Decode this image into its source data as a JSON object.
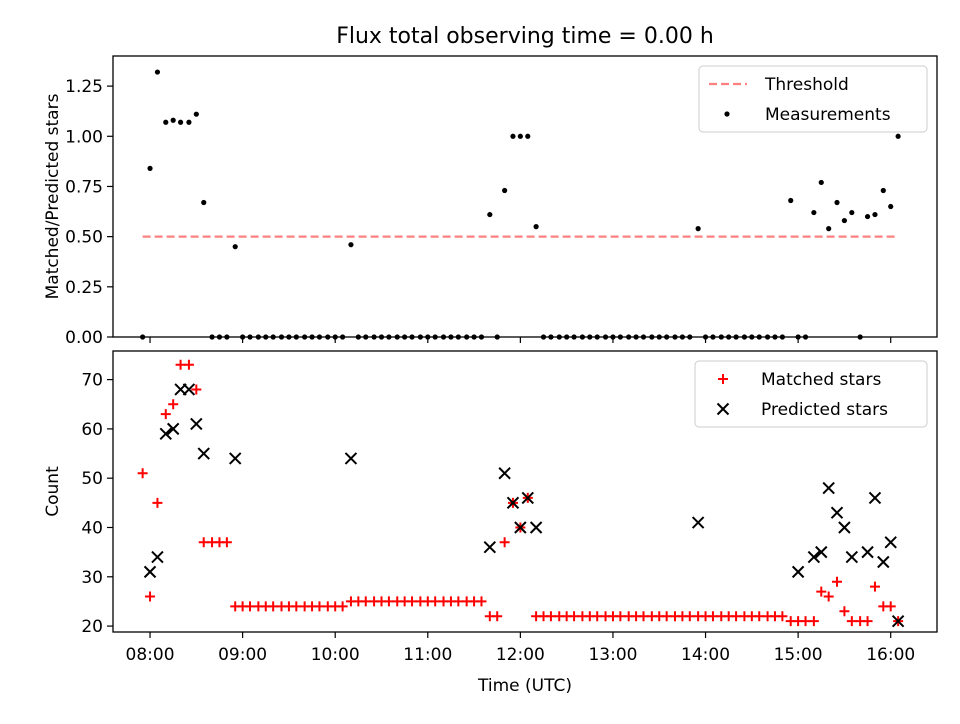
{
  "title": "Flux total observing time = 0.00 h",
  "chart_data": [
    {
      "type": "scatter",
      "ylabel": "Matched/Predicted stars",
      "xlabel": "",
      "xlim": [
        7.6,
        16.5
      ],
      "ylim": [
        0,
        1.4
      ],
      "yticks": [
        0,
        0.25,
        0.5,
        0.75,
        1.0,
        1.25
      ],
      "ytick_labels": [
        "0.00",
        "0.25",
        "0.50",
        "0.75",
        "1.00",
        "1.25"
      ],
      "legend": {
        "position": "top-right",
        "entries": [
          "Threshold",
          "Measurements"
        ]
      },
      "threshold": {
        "name": "Threshold",
        "y": 0.5,
        "x_range": [
          7.92,
          16.08
        ],
        "color": "#ff8080"
      },
      "series": [
        {
          "name": "Measurements",
          "color": "#000000",
          "x": [
            7.92,
            8.0,
            8.08,
            8.17,
            8.25,
            8.33,
            8.42,
            8.5,
            8.58,
            8.67,
            8.75,
            8.83,
            8.92,
            9.0,
            9.08,
            9.17,
            9.25,
            9.33,
            9.42,
            9.5,
            9.58,
            9.67,
            9.75,
            9.83,
            9.92,
            10.0,
            10.08,
            10.17,
            10.25,
            10.33,
            10.42,
            10.5,
            10.58,
            10.67,
            10.75,
            10.83,
            10.92,
            11.0,
            11.08,
            11.17,
            11.25,
            11.33,
            11.42,
            11.5,
            11.58,
            11.67,
            11.75,
            11.83,
            11.92,
            12.0,
            12.08,
            12.17,
            12.25,
            12.33,
            12.42,
            12.5,
            12.58,
            12.67,
            12.75,
            12.83,
            12.92,
            13.0,
            13.08,
            13.17,
            13.25,
            13.33,
            13.42,
            13.5,
            13.58,
            13.67,
            13.75,
            13.83,
            13.92,
            14.0,
            14.08,
            14.17,
            14.25,
            14.33,
            14.42,
            14.5,
            14.58,
            14.67,
            14.75,
            14.83,
            14.92,
            15.0,
            15.08,
            15.17,
            15.25,
            15.33,
            15.42,
            15.5,
            15.58,
            15.67,
            15.75,
            15.83,
            15.92,
            16.0,
            16.08
          ],
          "y": [
            0,
            0.84,
            1.32,
            1.07,
            1.08,
            1.07,
            1.07,
            1.11,
            0.67,
            0,
            0,
            0,
            0.45,
            0,
            0,
            0,
            0,
            0,
            0,
            0,
            0,
            0,
            0,
            0,
            0,
            0,
            0,
            0.46,
            0,
            0,
            0,
            0,
            0,
            0,
            0,
            0,
            0,
            0,
            0,
            0,
            0,
            0,
            0,
            0,
            0,
            0.61,
            0,
            0.73,
            1.0,
            1.0,
            1.0,
            0.55,
            0,
            0,
            0,
            0,
            0,
            0,
            0,
            0,
            0,
            0,
            0,
            0,
            0,
            0,
            0,
            0,
            0,
            0,
            0,
            0,
            0.54,
            0,
            0,
            0,
            0,
            0,
            0,
            0,
            0,
            0,
            0,
            0,
            0.68,
            0,
            0,
            0.62,
            0.77,
            0.54,
            0.67,
            0.58,
            0.62,
            0,
            0.6,
            0.61,
            0.73,
            0.65,
            1.0
          ]
        }
      ]
    },
    {
      "type": "scatter",
      "ylabel": "Count",
      "xlabel": "Time (UTC)",
      "xlim": [
        7.6,
        16.5
      ],
      "ylim": [
        18.8,
        75.8
      ],
      "yticks": [
        20,
        30,
        40,
        50,
        60,
        70
      ],
      "ytick_labels": [
        "20",
        "30",
        "40",
        "50",
        "60",
        "70"
      ],
      "xticks": [
        8,
        9,
        10,
        11,
        12,
        13,
        14,
        15,
        16
      ],
      "xtick_labels": [
        "08:00",
        "09:00",
        "10:00",
        "11:00",
        "12:00",
        "13:00",
        "14:00",
        "15:00",
        "16:00"
      ],
      "legend": {
        "position": "top-right",
        "entries": [
          "Matched stars",
          "Predicted stars"
        ]
      },
      "series": [
        {
          "name": "Matched stars",
          "marker": "plus",
          "color": "#ff0000",
          "x": [
            7.92,
            8.0,
            8.08,
            8.17,
            8.25,
            8.33,
            8.42,
            8.5,
            8.58,
            8.67,
            8.75,
            8.83,
            8.92,
            9.0,
            9.08,
            9.17,
            9.25,
            9.33,
            9.42,
            9.5,
            9.58,
            9.67,
            9.75,
            9.83,
            9.92,
            10.0,
            10.08,
            10.17,
            10.25,
            10.33,
            10.42,
            10.5,
            10.58,
            10.67,
            10.75,
            10.83,
            10.92,
            11.0,
            11.08,
            11.17,
            11.25,
            11.33,
            11.42,
            11.5,
            11.58,
            11.67,
            11.75,
            11.83,
            11.92,
            12.0,
            12.08,
            12.17,
            12.25,
            12.33,
            12.42,
            12.5,
            12.58,
            12.67,
            12.75,
            12.83,
            12.92,
            13.0,
            13.08,
            13.17,
            13.25,
            13.33,
            13.42,
            13.5,
            13.58,
            13.67,
            13.75,
            13.83,
            13.92,
            14.0,
            14.08,
            14.17,
            14.25,
            14.33,
            14.42,
            14.5,
            14.58,
            14.67,
            14.75,
            14.83,
            14.92,
            15.0,
            15.08,
            15.17,
            15.25,
            15.33,
            15.42,
            15.5,
            15.58,
            15.67,
            15.75,
            15.83,
            15.92,
            16.0,
            16.08
          ],
          "y": [
            51,
            26,
            45,
            63,
            65,
            73,
            73,
            68,
            37,
            37,
            37,
            37,
            24,
            24,
            24,
            24,
            24,
            24,
            24,
            24,
            24,
            24,
            24,
            24,
            24,
            24,
            24,
            25,
            25,
            25,
            25,
            25,
            25,
            25,
            25,
            25,
            25,
            25,
            25,
            25,
            25,
            25,
            25,
            25,
            25,
            22,
            22,
            37,
            45,
            40,
            46,
            22,
            22,
            22,
            22,
            22,
            22,
            22,
            22,
            22,
            22,
            22,
            22,
            22,
            22,
            22,
            22,
            22,
            22,
            22,
            22,
            22,
            22,
            22,
            22,
            22,
            22,
            22,
            22,
            22,
            22,
            22,
            22,
            22,
            21,
            21,
            21,
            21,
            27,
            26,
            29,
            23,
            21,
            21,
            21,
            28,
            24,
            24,
            21
          ]
        },
        {
          "name": "Predicted stars",
          "marker": "x",
          "color": "#000000",
          "x": [
            8.0,
            8.08,
            8.17,
            8.25,
            8.33,
            8.42,
            8.5,
            8.58,
            8.92,
            10.17,
            11.67,
            11.83,
            11.92,
            12.0,
            12.08,
            12.17,
            13.92,
            15.0,
            15.17,
            15.25,
            15.33,
            15.42,
            15.5,
            15.58,
            15.75,
            15.83,
            15.92,
            16.0,
            16.08
          ],
          "y": [
            31,
            34,
            59,
            60,
            68,
            68,
            61,
            55,
            54,
            54,
            36,
            51,
            45,
            40,
            46,
            40,
            41,
            31,
            34,
            35,
            48,
            43,
            40,
            34,
            35,
            46,
            33,
            37,
            21
          ]
        }
      ]
    }
  ]
}
